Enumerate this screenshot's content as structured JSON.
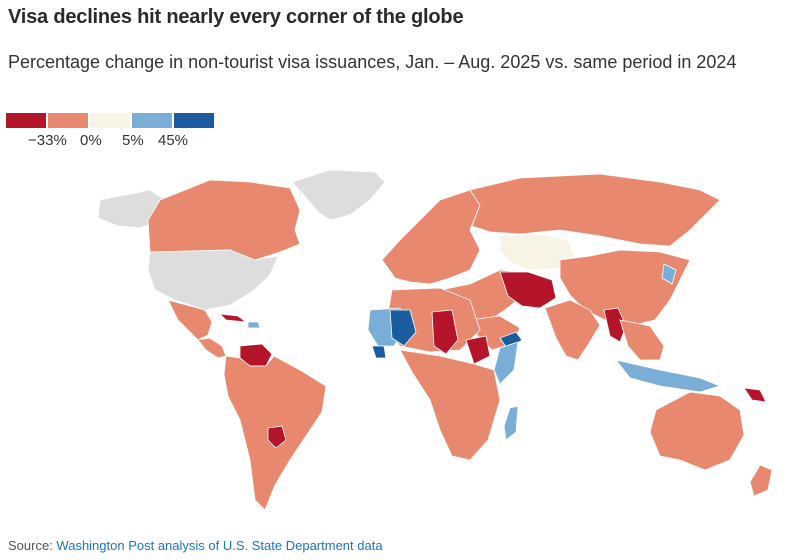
{
  "title": "Visa declines hit nearly every corner of the globe",
  "subtitle": "Percentage change in non-tourist visa issuances, Jan. – Aug. 2025 vs. same period in 2024",
  "legend": {
    "bins": [
      {
        "color": "#b5152b"
      },
      {
        "color": "#e8896f"
      },
      {
        "color": "#f7f4e6"
      },
      {
        "color": "#7aaed6"
      },
      {
        "color": "#1a5c9e"
      }
    ],
    "labels": [
      "−33%",
      "0%",
      "5%",
      "45%"
    ]
  },
  "colors": {
    "no_data": "#dddddd",
    "strong_decline": "#b5152b",
    "decline": "#e8896f",
    "slight_increase": "#f7f4e6",
    "increase": "#7aaed6",
    "strong_increase": "#1a5c9e"
  },
  "source": {
    "prefix": "Source: ",
    "link_text": "Washington Post analysis of U.S. State Department data"
  }
}
